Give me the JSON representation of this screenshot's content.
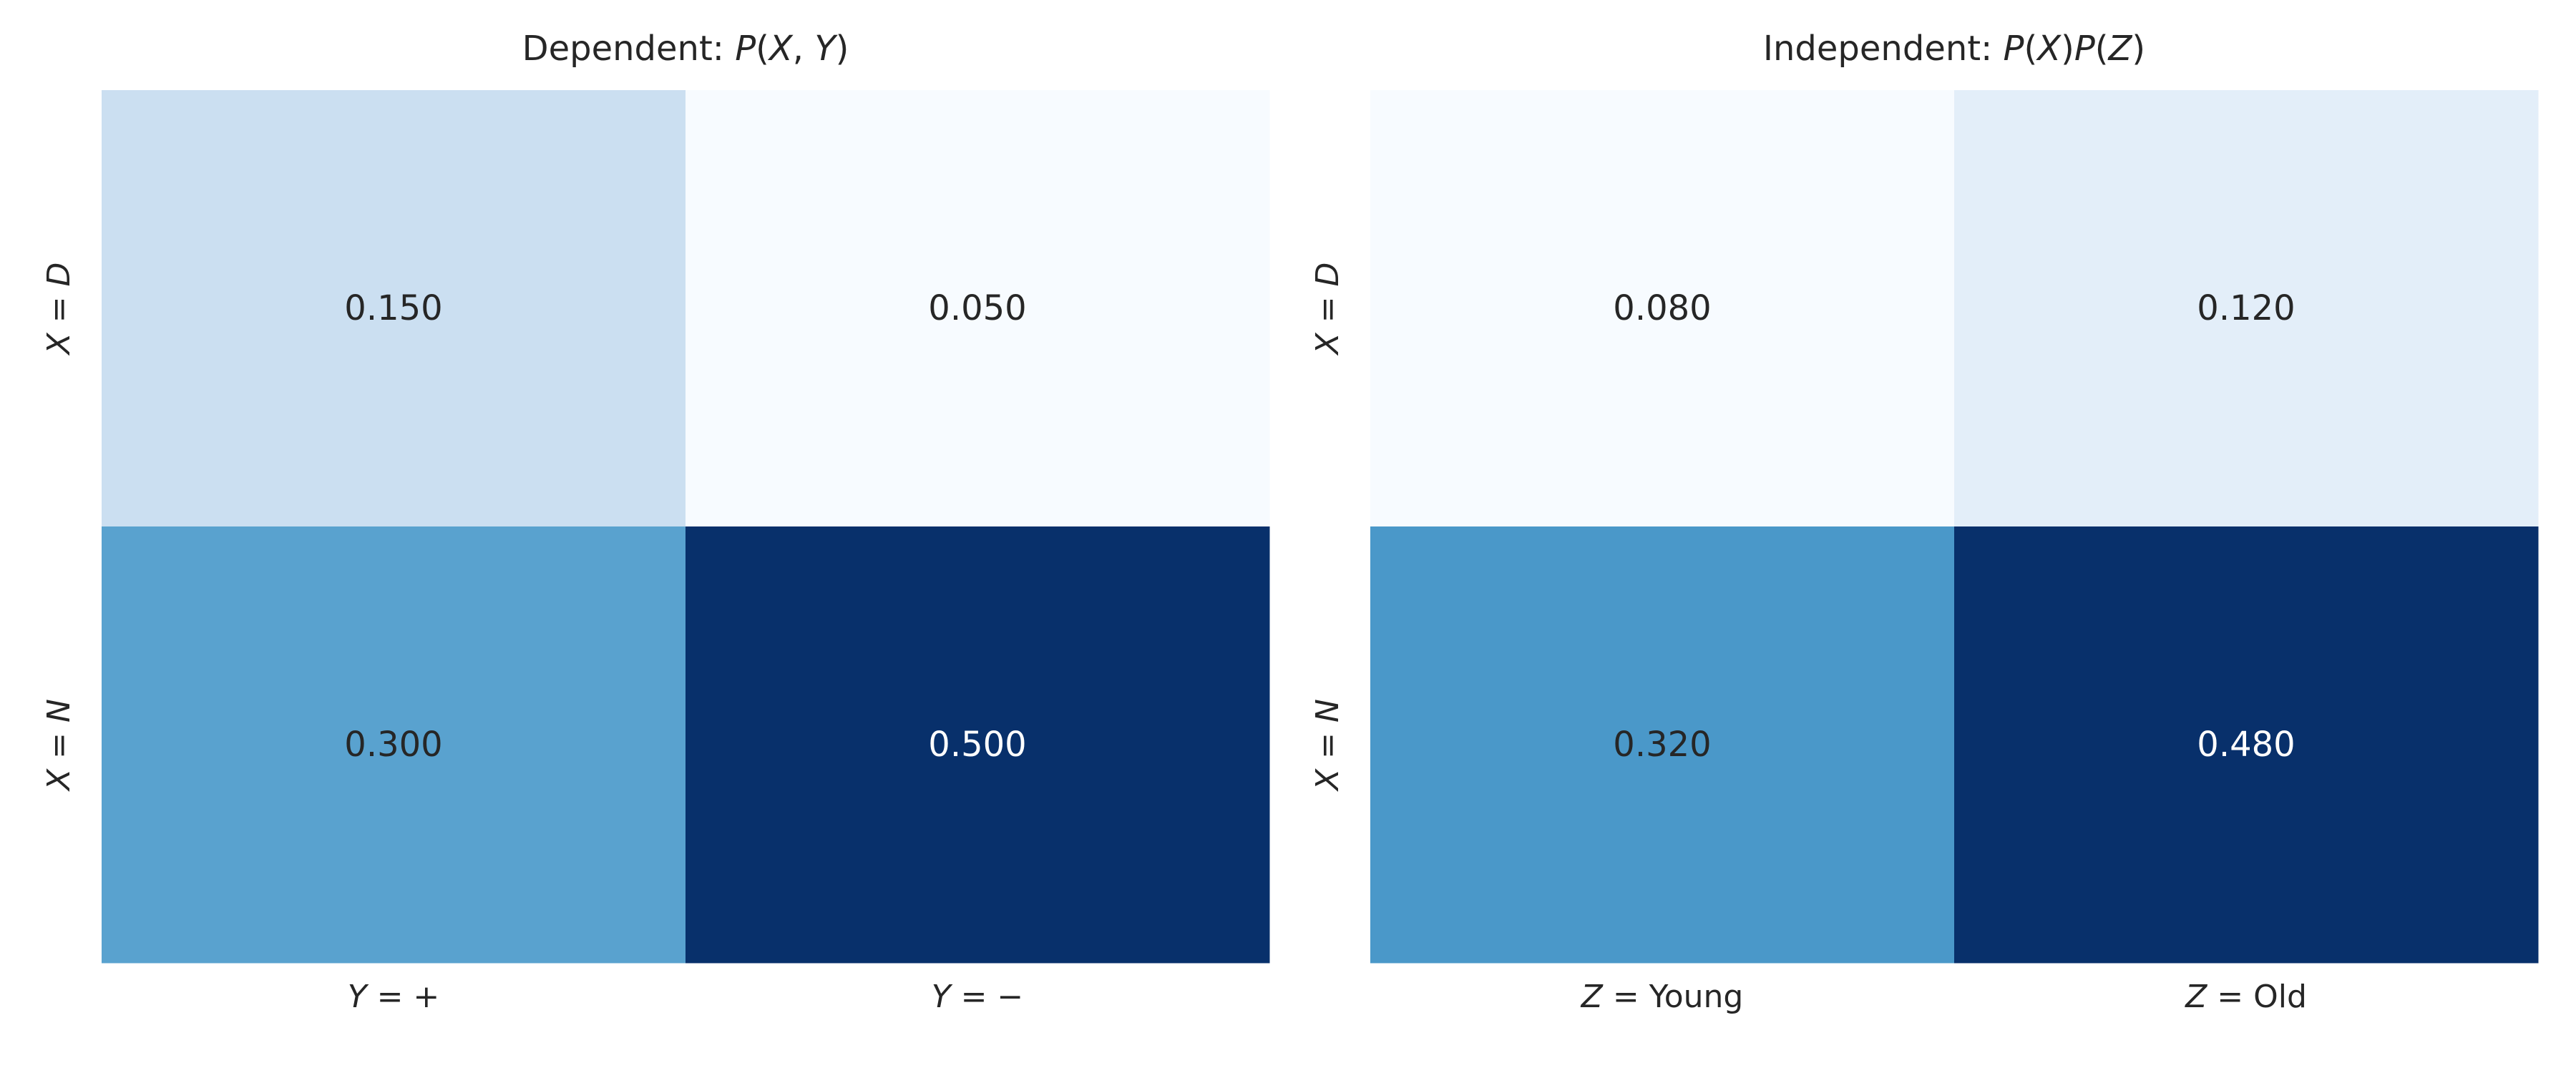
{
  "chart_data": [
    {
      "type": "heatmap",
      "title": "Dependent: P(X, Y)",
      "title_text": "Dependent: ",
      "title_math": [
        {
          "t": "P",
          "i": true
        },
        {
          "t": "(",
          "i": false
        },
        {
          "t": "X",
          "i": true
        },
        {
          "t": ", ",
          "i": false
        },
        {
          "t": "Y",
          "i": true
        },
        {
          "t": ")",
          "i": false
        }
      ],
      "rows": [
        "X = D",
        "X = N"
      ],
      "row_var": "X",
      "row_vals": [
        "D",
        "N"
      ],
      "cols": [
        "Y = +",
        "Y = −"
      ],
      "col_var": "Y",
      "col_vals": [
        "+",
        "−"
      ],
      "col_vals_italic": false,
      "values": [
        [
          0.15,
          0.05
        ],
        [
          0.3,
          0.5
        ]
      ],
      "labels": [
        [
          "0.150",
          "0.050"
        ],
        [
          "0.300",
          "0.500"
        ]
      ],
      "colormap": "Blues",
      "colorbar": false,
      "grid": false
    },
    {
      "type": "heatmap",
      "title": "Independent: P(X)P(Z)",
      "title_text": "Independent: ",
      "title_math": [
        {
          "t": "P",
          "i": true
        },
        {
          "t": "(",
          "i": false
        },
        {
          "t": "X",
          "i": true
        },
        {
          "t": ")",
          "i": false
        },
        {
          "t": "P",
          "i": true
        },
        {
          "t": "(",
          "i": false
        },
        {
          "t": "Z",
          "i": true
        },
        {
          "t": ")",
          "i": false
        }
      ],
      "rows": [
        "X = D",
        "X = N"
      ],
      "row_var": "X",
      "row_vals": [
        "D",
        "N"
      ],
      "cols": [
        "Z = Young",
        "Z = Old"
      ],
      "col_var": "Z",
      "col_vals": [
        "Young",
        "Old"
      ],
      "col_vals_italic": false,
      "values": [
        [
          0.08,
          0.12
        ],
        [
          0.32,
          0.48
        ]
      ],
      "labels": [
        [
          "0.080",
          "0.120"
        ],
        [
          "0.320",
          "0.480"
        ]
      ],
      "colormap": "Blues",
      "colorbar": false,
      "grid": false
    }
  ],
  "colors": {
    "text_dark": "#262626",
    "text_light": "#ffffff",
    "blues_low": "#f7fbff",
    "blues_high": "#08306b"
  }
}
